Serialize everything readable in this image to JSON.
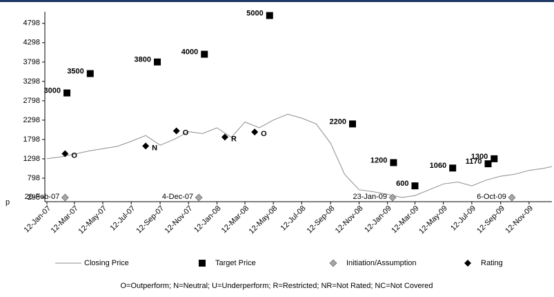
{
  "chart_data": {
    "type": "line",
    "y_label": "p",
    "ylim": [
      298,
      5098
    ],
    "yticks": [
      298,
      798,
      1298,
      1798,
      2298,
      2798,
      3298,
      3798,
      4298,
      4798
    ],
    "xlim": [
      "2007-01-12",
      "2009-12-31"
    ],
    "xticks": [
      {
        "value": "2007-01-12",
        "label": "12-Jan-07"
      },
      {
        "value": "2007-03-12",
        "label": "12-Mar-07"
      },
      {
        "value": "2007-05-12",
        "label": "12-May-07"
      },
      {
        "value": "2007-07-12",
        "label": "12-Jul-07"
      },
      {
        "value": "2007-09-12",
        "label": "12-Sep-07"
      },
      {
        "value": "2007-11-12",
        "label": "12-Nov-07"
      },
      {
        "value": "2008-01-12",
        "label": "12-Jan-08"
      },
      {
        "value": "2008-03-12",
        "label": "12-Mar-08"
      },
      {
        "value": "2008-05-12",
        "label": "12-May-08"
      },
      {
        "value": "2008-07-12",
        "label": "12-Jul-08"
      },
      {
        "value": "2008-09-12",
        "label": "12-Sep-08"
      },
      {
        "value": "2008-11-12",
        "label": "12-Nov-08"
      },
      {
        "value": "2009-01-12",
        "label": "12-Jan-09"
      },
      {
        "value": "2009-03-12",
        "label": "12-Mar-09"
      },
      {
        "value": "2009-05-12",
        "label": "12-May-09"
      },
      {
        "value": "2009-07-12",
        "label": "12-Jul-09"
      },
      {
        "value": "2009-09-12",
        "label": "12-Sep-09"
      },
      {
        "value": "2009-11-12",
        "label": "12-Nov-09"
      }
    ],
    "series": [
      {
        "name": "Closing Price",
        "mark": "line",
        "color": "#8c8c8c",
        "x": [
          "2007-01-12",
          "2007-02-12",
          "2007-03-12",
          "2007-04-12",
          "2007-05-12",
          "2007-06-12",
          "2007-07-12",
          "2007-08-12",
          "2007-09-12",
          "2007-10-12",
          "2007-11-12",
          "2007-12-12",
          "2008-01-12",
          "2008-02-12",
          "2008-03-12",
          "2008-04-12",
          "2008-05-12",
          "2008-06-12",
          "2008-07-12",
          "2008-08-12",
          "2008-09-12",
          "2008-10-12",
          "2008-11-12",
          "2008-12-12",
          "2009-01-12",
          "2009-02-12",
          "2009-03-12",
          "2009-04-12",
          "2009-05-12",
          "2009-06-12",
          "2009-07-12",
          "2009-08-12",
          "2009-09-12",
          "2009-10-12",
          "2009-11-12",
          "2009-12-12",
          "2009-12-31"
        ],
        "values": [
          1300,
          1350,
          1420,
          1500,
          1560,
          1620,
          1750,
          1900,
          1650,
          1800,
          2000,
          1950,
          2100,
          1850,
          2250,
          2100,
          2300,
          2450,
          2350,
          2200,
          1700,
          900,
          500,
          450,
          380,
          300,
          350,
          500,
          650,
          700,
          600,
          750,
          850,
          900,
          1000,
          1050,
          1100
        ]
      },
      {
        "name": "Target Price",
        "mark": "square",
        "color": "#000000",
        "x": [
          "2007-02-24",
          "2007-04-15",
          "2007-09-06",
          "2007-12-16",
          "2008-05-04",
          "2008-10-29",
          "2009-01-25",
          "2009-03-12",
          "2009-06-01",
          "2009-08-16",
          "2009-08-29"
        ],
        "values": [
          3000,
          3500,
          3800,
          4000,
          5000,
          2200,
          1200,
          600,
          1060,
          1170,
          1300
        ]
      },
      {
        "name": "Initiation/Assumption",
        "mark": "diamond",
        "color": "#a6a6a6",
        "x": [
          "2007-02-20",
          "2007-12-04",
          "2009-01-23",
          "2009-10-06"
        ],
        "values": [
          298,
          298,
          298,
          298
        ],
        "point_labels": [
          "20-Feb-07",
          "4-Dec-07",
          "23-Jan-09",
          "6-Oct-09"
        ]
      },
      {
        "name": "Rating",
        "mark": "diamond",
        "color": "#000000",
        "x": [
          "2007-02-20",
          "2007-08-12",
          "2007-10-17",
          "2008-01-29",
          "2008-04-02"
        ],
        "values": [
          1430,
          1630,
          2020,
          1860,
          1990
        ],
        "point_labels": [
          "O",
          "N",
          "O",
          "R",
          "O"
        ]
      }
    ],
    "footnote": "O=Outperform; N=Neutral; U=Underperform; R=Restricted; NR=Not Rated; NC=Not Covered"
  }
}
